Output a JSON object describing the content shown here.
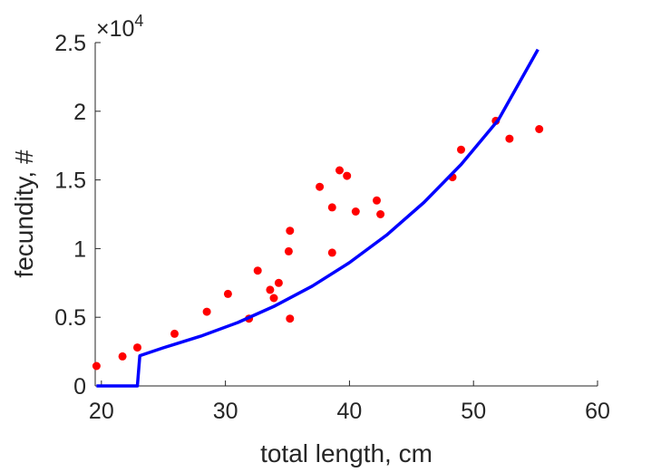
{
  "chart_data": {
    "type": "scatter",
    "title": "",
    "xlabel": "total length, cm",
    "ylabel": "fecundity, #",
    "xlim": [
      19.5,
      60
    ],
    "ylim": [
      0,
      25000
    ],
    "xticks": [
      20,
      30,
      40,
      50,
      60
    ],
    "xtick_labels": [
      "20",
      "30",
      "40",
      "50",
      "60"
    ],
    "yticks": [
      0,
      5000,
      10000,
      15000,
      20000,
      25000
    ],
    "ytick_labels": [
      "0",
      "0.5",
      "1",
      "1.5",
      "2",
      "2.5"
    ],
    "y_exponent_label": {
      "base": "×10",
      "power": "4"
    },
    "grid": false,
    "legend": "none",
    "series": [
      {
        "type": "scatter",
        "color": "#ff0000",
        "points": [
          [
            19.6,
            1450
          ],
          [
            21.7,
            2150
          ],
          [
            22.9,
            2800
          ],
          [
            25.9,
            3800
          ],
          [
            28.5,
            5400
          ],
          [
            30.2,
            6700
          ],
          [
            31.9,
            4900
          ],
          [
            32.6,
            8400
          ],
          [
            33.6,
            7000
          ],
          [
            33.9,
            6400
          ],
          [
            34.3,
            7500
          ],
          [
            35.1,
            9800
          ],
          [
            35.2,
            11300
          ],
          [
            35.2,
            4900
          ],
          [
            37.6,
            14500
          ],
          [
            38.6,
            13000
          ],
          [
            38.6,
            9700
          ],
          [
            39.2,
            15700
          ],
          [
            39.8,
            15300
          ],
          [
            40.5,
            12700
          ],
          [
            42.2,
            13500
          ],
          [
            42.5,
            12500
          ],
          [
            48.3,
            15200
          ],
          [
            49.0,
            17200
          ],
          [
            51.8,
            19300
          ],
          [
            52.9,
            18000
          ],
          [
            55.3,
            18700
          ]
        ]
      },
      {
        "type": "line",
        "color": "#0000ff",
        "points": [
          [
            19.6,
            0
          ],
          [
            22.9,
            0
          ],
          [
            23.1,
            2200
          ],
          [
            25,
            2780
          ],
          [
            28,
            3620
          ],
          [
            31,
            4620
          ],
          [
            34,
            5830
          ],
          [
            37,
            7270
          ],
          [
            40,
            8980
          ],
          [
            43,
            10990
          ],
          [
            46,
            13360
          ],
          [
            49,
            16120
          ],
          [
            52,
            19370
          ],
          [
            55.2,
            24500
          ]
        ]
      }
    ]
  }
}
